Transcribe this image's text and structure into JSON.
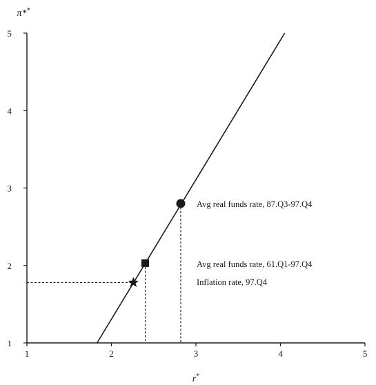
{
  "chart_data": {
    "type": "line",
    "title": "",
    "xlabel": "r*",
    "ylabel": "π*",
    "xlim": [
      1,
      5
    ],
    "ylim": [
      1,
      5
    ],
    "xticks": [
      "1",
      "2",
      "3",
      "4",
      "5"
    ],
    "yticks": [
      "1",
      "2",
      "3",
      "4",
      "5"
    ],
    "grid": false,
    "line": {
      "x": [
        1.83,
        4.05
      ],
      "y": [
        1.0,
        5.0
      ]
    },
    "markers": [
      {
        "id": "circle",
        "shape": "circle",
        "x": 2.82,
        "y": 2.8,
        "label": "Avg real funds rate, 87.Q3-97.Q4"
      },
      {
        "id": "square",
        "shape": "square",
        "x": 2.4,
        "y": 2.03,
        "label": "Avg real funds rate, 61.Q1-97.Q4"
      },
      {
        "id": "star",
        "shape": "star",
        "x": 2.26,
        "y": 1.78,
        "label": "Inflation rate, 97.Q4"
      }
    ]
  }
}
